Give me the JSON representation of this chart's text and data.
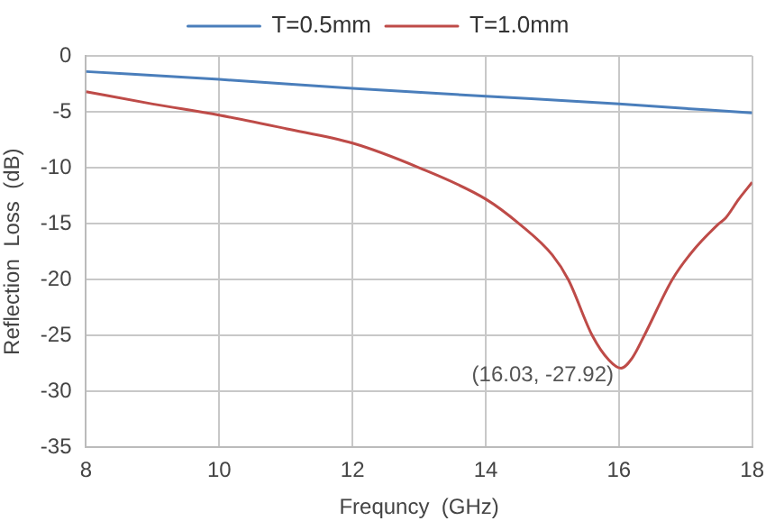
{
  "chart_data": {
    "type": "line",
    "xlabel": "Frequncy  (GHz)",
    "ylabel": "Reflection  Loss  (dB)",
    "xlim": [
      8,
      18
    ],
    "xticks": [
      8,
      10,
      12,
      14,
      16,
      18
    ],
    "ylim": [
      -35,
      0
    ],
    "yticks": [
      0,
      -5,
      -10,
      -15,
      -20,
      -25,
      -30,
      -35
    ],
    "grid": true,
    "legend": "top",
    "marker": "none",
    "series": [
      {
        "name": "T=0.5mm",
        "color": "#4a7ebb",
        "x": [
          8,
          10,
          12,
          14,
          16,
          18
        ],
        "values": [
          -1.4,
          -2.1,
          -2.9,
          -3.6,
          -4.3,
          -5.1
        ]
      },
      {
        "name": "T=1.0mm",
        "color": "#be4b48",
        "x": [
          8,
          9,
          10,
          11,
          12,
          13,
          14,
          14.5,
          15,
          15.24,
          15.6,
          15.85,
          16.03,
          16.2,
          16.38,
          16.8,
          17.1,
          17.5,
          17.6,
          17.8,
          18
        ],
        "values": [
          -3.2,
          -4.3,
          -5.3,
          -6.5,
          -7.8,
          -10,
          -12.8,
          -15,
          -17.8,
          -20,
          -25,
          -27.2,
          -27.92,
          -27,
          -25,
          -20,
          -17.5,
          -15,
          -14.5,
          -12.8,
          -11.3
        ]
      }
    ],
    "annotations": [
      {
        "text": "(16.03, -27.92)",
        "x": 16.03,
        "y": -27.92
      }
    ]
  }
}
